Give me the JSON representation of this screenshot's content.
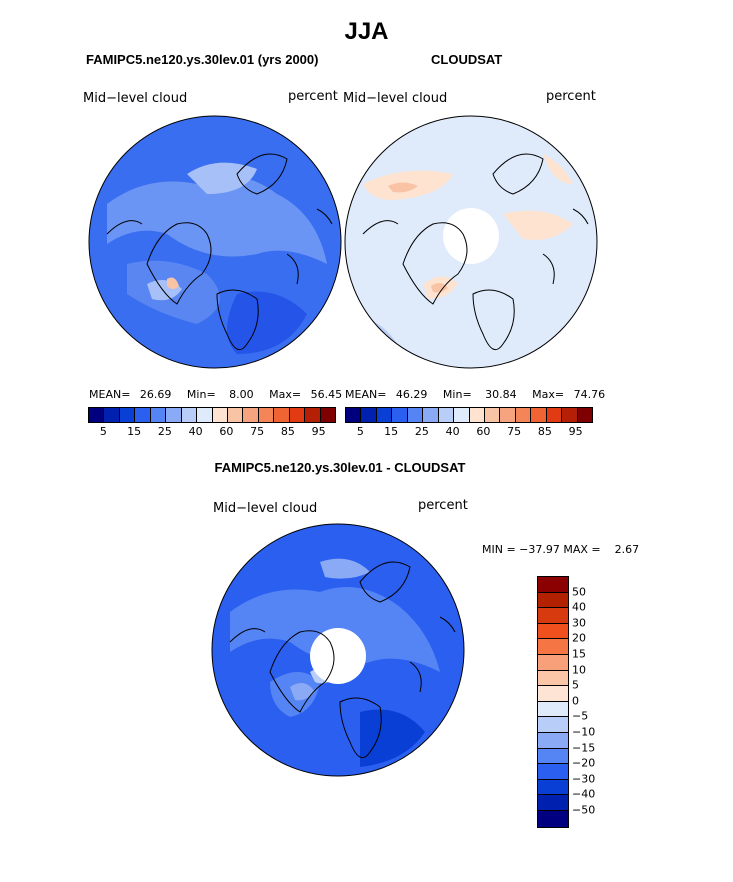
{
  "title": "JJA",
  "panels": [
    {
      "title": "FAMIPC5.ne120.ys.30lev.01 (yrs 2000)",
      "left_label": "Mid−level cloud",
      "right_label": "percent",
      "stats": {
        "mean_label": "MEAN=",
        "mean": "26.69",
        "min_label": "Min=",
        "min": "8.00",
        "max_label": "Max=",
        "max": "56.45"
      }
    },
    {
      "title": "CLOUDSAT",
      "left_label": "Mid−level cloud",
      "right_label": "percent",
      "stats": {
        "mean_label": "MEAN=",
        "mean": "46.29",
        "min_label": "Min=",
        "min": "30.84",
        "max_label": "Max=",
        "max": "74.76"
      }
    },
    {
      "title": "FAMIPC5.ne120.ys.30lev.01 - CLOUDSAT",
      "left_label": "Mid−level cloud",
      "right_label": "percent",
      "stats_text": "MIN = −37.97 MAX =    2.67"
    }
  ],
  "abs_colorbar": {
    "colors": [
      "#00007f",
      "#0020b0",
      "#0a3fd6",
      "#2a5ff0",
      "#5584f5",
      "#8aaaf5",
      "#b8cdf8",
      "#dfeafb",
      "#fde3d0",
      "#f9c3a6",
      "#f6a47f",
      "#f48558",
      "#f06433",
      "#e23b14",
      "#b51f06",
      "#7f0000"
    ],
    "tick_labels": [
      "5",
      "15",
      "25",
      "40",
      "60",
      "75",
      "85",
      "95"
    ]
  },
  "diff_colorbar": {
    "colors": [
      "#8b0000",
      "#b22200",
      "#d83a10",
      "#f0501e",
      "#f57545",
      "#f8a07a",
      "#fbc5a8",
      "#fde4d4",
      "#dfeafb",
      "#b8cdf8",
      "#8aaaf5",
      "#5584f5",
      "#2a5ff0",
      "#0a3fd6",
      "#0020b0",
      "#000080"
    ],
    "tick_labels": [
      "50",
      "40",
      "30",
      "20",
      "15",
      "10",
      "5",
      "0",
      "−5",
      "−10",
      "−15",
      "−20",
      "−30",
      "−40",
      "−50"
    ]
  }
}
